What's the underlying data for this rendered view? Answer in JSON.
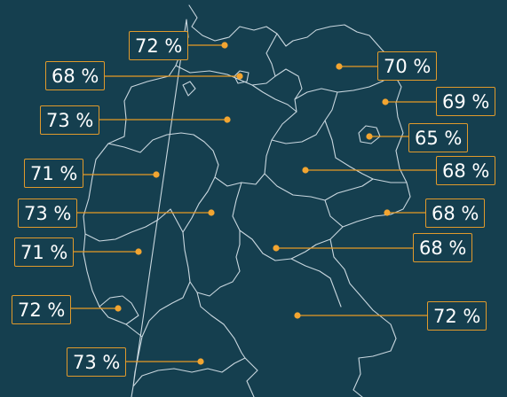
{
  "colors": {
    "background": "#153f4f",
    "borders": "#c9d7df",
    "accent": "#f2a531"
  },
  "regions": [
    {
      "id": "schleswig-holstein",
      "value": "72 %"
    },
    {
      "id": "hamburg",
      "value": "68 %"
    },
    {
      "id": "mecklenburg-vorpommern",
      "value": "70 %"
    },
    {
      "id": "niedersachsen",
      "value": "73 %"
    },
    {
      "id": "brandenburg",
      "value": "69 %"
    },
    {
      "id": "berlin",
      "value": "65 %"
    },
    {
      "id": "nordrhein-westfalen",
      "value": "71 %"
    },
    {
      "id": "sachsen-anhalt",
      "value": "68 %"
    },
    {
      "id": "hessen",
      "value": "73 %"
    },
    {
      "id": "sachsen",
      "value": "68 %"
    },
    {
      "id": "rheinland-pfalz",
      "value": "71 %"
    },
    {
      "id": "thueringen",
      "value": "68 %"
    },
    {
      "id": "saarland",
      "value": "72 %"
    },
    {
      "id": "bayern",
      "value": "72 %"
    },
    {
      "id": "baden-wuerttemberg",
      "value": "73 %"
    }
  ]
}
